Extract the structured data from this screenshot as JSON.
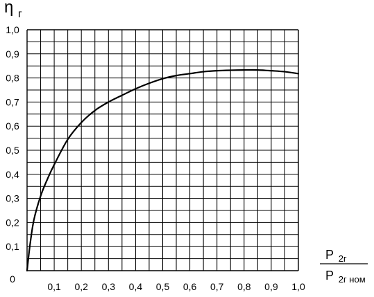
{
  "chart_data": {
    "type": "line",
    "ylabel": {
      "main": "η",
      "sub": "г"
    },
    "xlabel": {
      "numerator": {
        "main": "P",
        "sub": "2г"
      },
      "denominator": {
        "main": "P",
        "sub": "2г ном"
      }
    },
    "xlim": [
      0,
      1.0
    ],
    "ylim": [
      0,
      1.0
    ],
    "origin_label": "0",
    "x_ticks": [
      "0,1",
      "0,2",
      "0,3",
      "0,4",
      "0,5",
      "0,6",
      "0,7",
      "0,8",
      "0,9",
      "1,0"
    ],
    "y_ticks": [
      "0,1",
      "0,2",
      "0,3",
      "0,4",
      "0,5",
      "0,6",
      "0,7",
      "0,8",
      "0,9",
      "1,0"
    ],
    "grid": true,
    "grid_step": 0.05,
    "series": [
      {
        "x": [
          0,
          0.01,
          0.025,
          0.05,
          0.075,
          0.1,
          0.15,
          0.2,
          0.25,
          0.3,
          0.35,
          0.4,
          0.45,
          0.5,
          0.55,
          0.6,
          0.65,
          0.7,
          0.75,
          0.8,
          0.85,
          0.9,
          0.95,
          1.0
        ],
        "y": [
          0,
          0.1,
          0.21,
          0.31,
          0.38,
          0.44,
          0.545,
          0.615,
          0.665,
          0.7,
          0.728,
          0.755,
          0.778,
          0.797,
          0.81,
          0.818,
          0.826,
          0.83,
          0.832,
          0.833,
          0.833,
          0.83,
          0.826,
          0.818
        ]
      }
    ]
  },
  "style": {
    "line_color": "#000000",
    "grid_color": "#000000"
  }
}
